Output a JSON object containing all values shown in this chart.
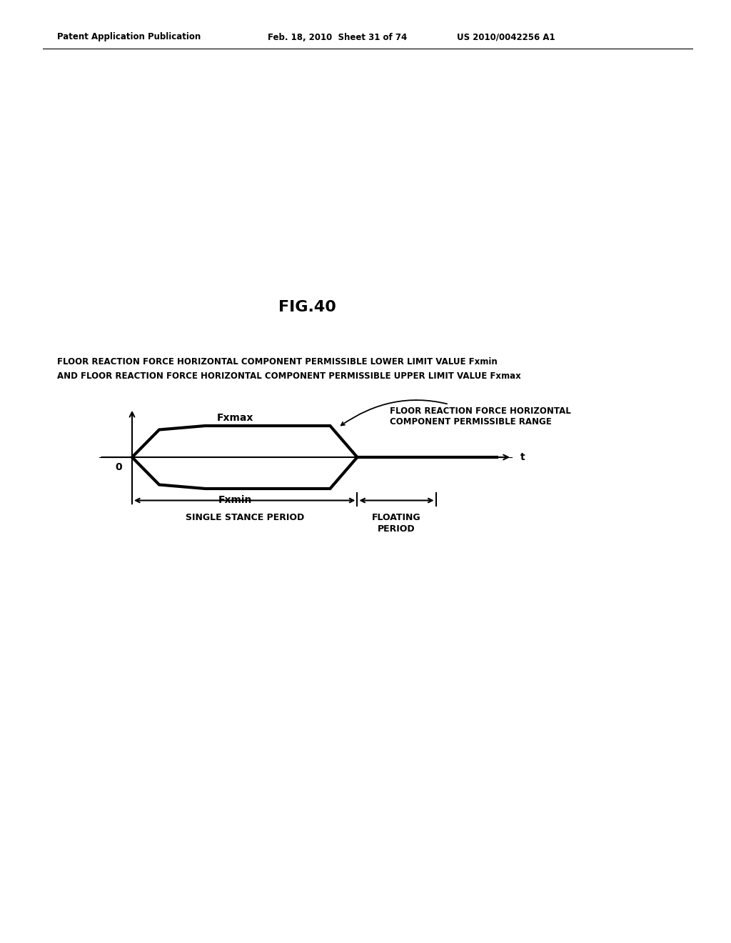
{
  "fig_title": "FIG.40",
  "header_left": "Patent Application Publication",
  "header_mid": "Feb. 18, 2010  Sheet 31 of 74",
  "header_right": "US 2010/0042256 A1",
  "label_line1": "FLOOR REACTION FORCE HORIZONTAL COMPONENT PERMISSIBLE LOWER LIMIT VALUE Fxmin",
  "label_line2": "AND FLOOR REACTION FORCE HORIZONTAL COMPONENT PERMISSIBLE UPPER LIMIT VALUE Fxmax",
  "annotation_text": "FLOOR REACTION FORCE HORIZONTAL\nCOMPONENT PERMISSIBLE RANGE",
  "fxmax_label": "Fxmax",
  "fxmin_label": "Fxmin",
  "zero_label": "0",
  "t_label": "t",
  "single_stance_label": "SINGLE STANCE PERIOD",
  "floating_label": "FLOATING\nPERIOD",
  "background_color": "#ffffff",
  "shape_lw": 3.0
}
